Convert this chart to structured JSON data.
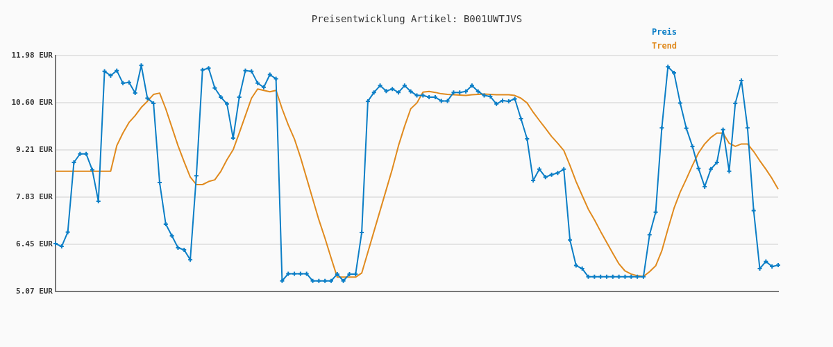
{
  "chart_data": {
    "type": "line",
    "title": "Preisentwicklung Artikel: B001UWTJVS",
    "categories": [
      null,
      null,
      null,
      null,
      null,
      null,
      null,
      null,
      null,
      null,
      null,
      null,
      null,
      null,
      null,
      null,
      null,
      null,
      null,
      null,
      null,
      null,
      null,
      null,
      null,
      null,
      null,
      null,
      null,
      null,
      null,
      null,
      null,
      null,
      null,
      null,
      null,
      null,
      null,
      null,
      null,
      null,
      null,
      null,
      null,
      null,
      null,
      null,
      null,
      null,
      null,
      null,
      null,
      null,
      null,
      null,
      null,
      null,
      null,
      null,
      null,
      null,
      null,
      null,
      null,
      null,
      null,
      null,
      null,
      null,
      null,
      null,
      null,
      null,
      null,
      null,
      null,
      null,
      null,
      null,
      null,
      null,
      null,
      null,
      null,
      null,
      null,
      null,
      null,
      null,
      null,
      null,
      null,
      null,
      null,
      null,
      null,
      null,
      null,
      null,
      null,
      null,
      null,
      null,
      null,
      null,
      null,
      null,
      null,
      null,
      null,
      null,
      null,
      null,
      null,
      null,
      null,
      null,
      null
    ],
    "series": [
      {
        "name": "Preis",
        "color": "#0b7ec6",
        "marker": "cross",
        "values": [
          6.47,
          6.39,
          6.81,
          8.85,
          9.1,
          9.1,
          8.63,
          7.71,
          11.52,
          11.39,
          11.54,
          11.17,
          11.19,
          10.88,
          11.69,
          10.73,
          10.58,
          8.26,
          7.04,
          6.7,
          6.35,
          6.29,
          6.0,
          8.46,
          11.56,
          11.61,
          11.03,
          10.76,
          10.56,
          9.56,
          10.76,
          11.54,
          11.52,
          11.17,
          11.05,
          11.42,
          11.3,
          5.38,
          5.59,
          5.59,
          5.59,
          5.59,
          5.38,
          5.38,
          5.38,
          5.38,
          5.58,
          5.38,
          5.58,
          5.58,
          6.8,
          10.64,
          10.9,
          11.1,
          10.94,
          11.0,
          10.9,
          11.1,
          10.93,
          10.81,
          10.81,
          10.76,
          10.76,
          10.65,
          10.65,
          10.9,
          10.9,
          10.93,
          11.1,
          10.93,
          10.81,
          10.78,
          10.56,
          10.66,
          10.64,
          10.71,
          10.13,
          9.54,
          8.32,
          8.65,
          8.42,
          8.49,
          8.54,
          8.65,
          6.58,
          5.83,
          5.74,
          5.5,
          5.5,
          5.5,
          5.5,
          5.5,
          5.5,
          5.5,
          5.5,
          5.5,
          5.5,
          6.73,
          7.39,
          9.86,
          11.65,
          11.47,
          10.59,
          9.85,
          9.32,
          8.67,
          8.14,
          8.65,
          8.85,
          9.81,
          8.59,
          10.58,
          11.25,
          9.86,
          7.44,
          5.74,
          5.95,
          5.8,
          5.84
        ]
      },
      {
        "name": "Trend",
        "color": "#e08a1e",
        "marker": "none",
        "values": [
          8.59,
          8.59,
          8.59,
          8.59,
          8.59,
          8.59,
          8.59,
          8.59,
          8.59,
          8.59,
          9.34,
          9.71,
          10.02,
          10.22,
          10.46,
          10.64,
          10.84,
          10.88,
          10.42,
          9.88,
          9.34,
          8.87,
          8.42,
          8.2,
          8.2,
          8.29,
          8.34,
          8.59,
          8.93,
          9.22,
          9.71,
          10.22,
          10.73,
          11.0,
          10.96,
          10.92,
          10.96,
          10.42,
          9.95,
          9.54,
          9.0,
          8.39,
          7.78,
          7.17,
          6.63,
          6.05,
          5.49,
          5.49,
          5.49,
          5.49,
          5.61,
          6.22,
          6.83,
          7.44,
          8.05,
          8.66,
          9.34,
          9.91,
          10.42,
          10.59,
          10.91,
          10.93,
          10.9,
          10.86,
          10.84,
          10.83,
          10.82,
          10.81,
          10.83,
          10.84,
          10.85,
          10.84,
          10.83,
          10.83,
          10.83,
          10.81,
          10.73,
          10.59,
          10.32,
          10.08,
          9.85,
          9.61,
          9.41,
          9.2,
          8.76,
          8.29,
          7.88,
          7.48,
          7.17,
          6.83,
          6.51,
          6.19,
          5.88,
          5.67,
          5.58,
          5.53,
          5.51,
          5.65,
          5.82,
          6.26,
          6.9,
          7.51,
          7.98,
          8.36,
          8.76,
          9.13,
          9.39,
          9.58,
          9.71,
          9.71,
          9.41,
          9.32,
          9.39,
          9.39,
          9.17,
          8.9,
          8.65,
          8.38,
          8.07
        ]
      }
    ],
    "ylim": [
      5.07,
      11.98
    ],
    "yticks": [
      {
        "value": 5.07,
        "label": "5.07 EUR"
      },
      {
        "value": 6.45,
        "label": "6.45 EUR"
      },
      {
        "value": 7.83,
        "label": "7.83 EUR"
      },
      {
        "value": 9.21,
        "label": "9.21 EUR"
      },
      {
        "value": 10.6,
        "label": "10.60 EUR"
      },
      {
        "value": 11.98,
        "label": "11.98 EUR"
      }
    ],
    "grid": "y",
    "legend": "top right",
    "tick_labels": "y"
  }
}
